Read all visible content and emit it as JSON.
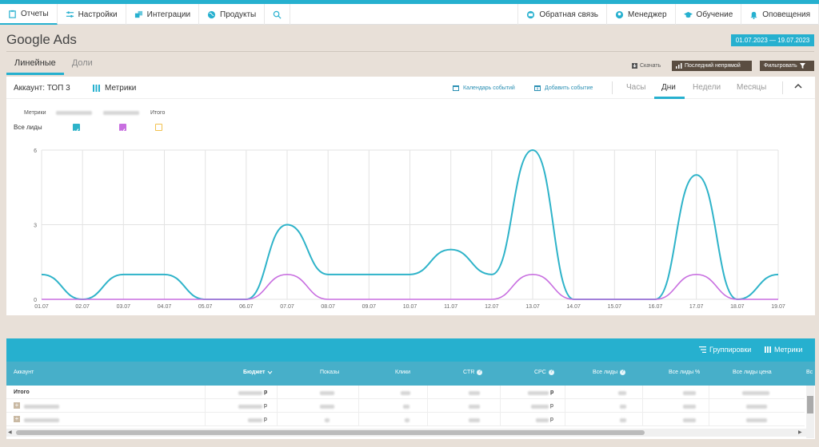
{
  "nav": {
    "left": [
      {
        "label": "Отчеты",
        "icon": "clipboard-icon"
      },
      {
        "label": "Настройки",
        "icon": "settings-sliders-icon"
      },
      {
        "label": "Интеграции",
        "icon": "puzzle-icon"
      },
      {
        "label": "Продукты",
        "icon": "globe-icon"
      }
    ],
    "search_icon": "search-icon",
    "right": [
      {
        "label": "Обратная связь",
        "icon": "feedback-icon"
      },
      {
        "label": "Менеджер",
        "icon": "manager-icon"
      },
      {
        "label": "Обучение",
        "icon": "graduation-cap-icon"
      },
      {
        "label": "Оповещения",
        "icon": "bell-icon"
      }
    ]
  },
  "page": {
    "title": "Google Ads",
    "date_range": "01.07.2023 — 19.07.2023"
  },
  "tabs": [
    "Линейные",
    "Доли"
  ],
  "toolbar": {
    "download": "Скачать",
    "last_indirect": "Последний непрямой",
    "filter": "Фильтровать"
  },
  "chart_header": {
    "account": "Аккаунт: ТОП 3",
    "metrics": "Метрики",
    "events_calendar": "Календарь событий",
    "add_event": "Добавить событие",
    "periods": [
      "Часы",
      "Дни",
      "Недели",
      "Месяцы"
    ],
    "active_period": "Дни"
  },
  "legend": {
    "metrics_label": "Метрики",
    "total_label": "Итого",
    "row_label": "Все лиды"
  },
  "colors": {
    "accent": "#26b0cf",
    "series1": "#2eb3c9",
    "series2": "#c86fe0",
    "series3": "#f2c14e"
  },
  "chart_data": {
    "type": "line",
    "categories": [
      "01.07",
      "02.07",
      "03.07",
      "04.07",
      "05.07",
      "06.07",
      "07.07",
      "08.07",
      "09.07",
      "10.07",
      "11.07",
      "12.07",
      "13.07",
      "14.07",
      "15.07",
      "16.07",
      "17.07",
      "18.07",
      "19.07"
    ],
    "series": [
      {
        "values": [
          1,
          0,
          1,
          1,
          0,
          0,
          3,
          1,
          1,
          1,
          2,
          1,
          6,
          0,
          0,
          0,
          5,
          0,
          1
        ]
      },
      {
        "values": [
          0,
          0,
          0,
          0,
          0,
          0,
          1,
          0,
          0,
          0,
          0,
          0,
          1,
          0,
          0,
          0,
          1,
          0,
          0
        ]
      }
    ],
    "yticks": [
      "0",
      "3",
      "6"
    ],
    "ylim": [
      0,
      6
    ],
    "grid": true,
    "title": "",
    "xlabel": "",
    "ylabel": ""
  },
  "table": {
    "groupings": "Группировки",
    "metrics": "Метрики",
    "columns": [
      "Аккаунт",
      "Бюджет",
      "Показы",
      "Клики",
      "CTR",
      "CPC",
      "Все лиды",
      "Все лиды %",
      "Все лиды цена",
      "Вс"
    ],
    "total_label": "Итого",
    "currency": "р"
  }
}
